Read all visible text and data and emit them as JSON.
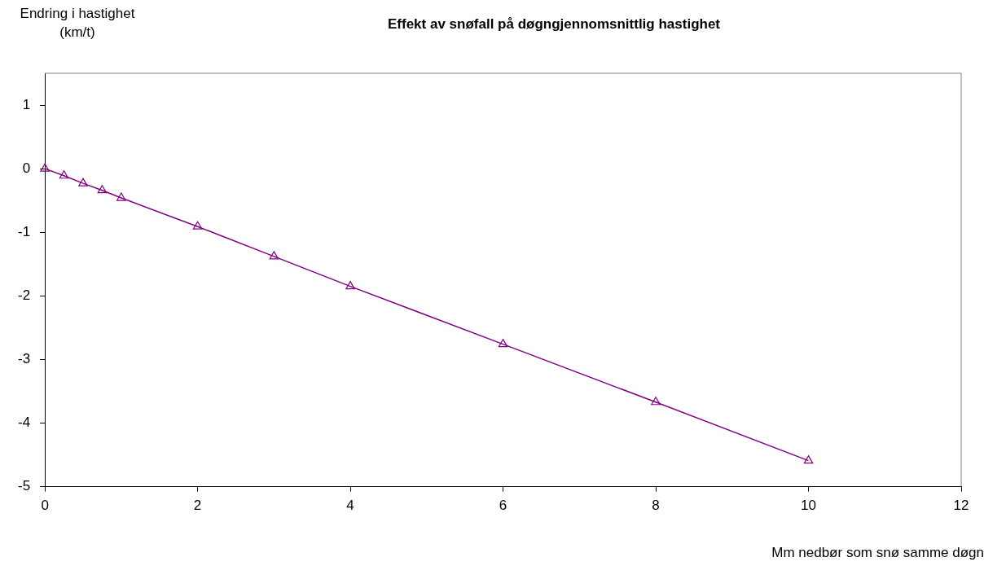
{
  "chart_data": {
    "type": "line",
    "title": "Effekt av snøfall på døgngjennomsnittlig hastighet",
    "ylabel": "Endring i hastighet\n(km/t)",
    "xlabel": "Mm nedbør som snø samme døgn",
    "x": [
      0,
      0.25,
      0.5,
      0.75,
      1,
      2,
      3,
      4,
      6,
      8,
      10
    ],
    "series": [
      {
        "color": "#800080",
        "values": [
          0,
          -0.11,
          -0.23,
          -0.34,
          -0.46,
          -0.91,
          -1.38,
          -1.85,
          -2.76,
          -3.67,
          -4.59
        ]
      }
    ],
    "xlim": [
      0,
      12
    ],
    "xticks": [
      0,
      2,
      4,
      6,
      8,
      10,
      12
    ],
    "ylim": [
      -5,
      1.5
    ],
    "yticks": [
      -5,
      -4,
      -3,
      -2,
      -1,
      0,
      1
    ],
    "grid": false,
    "legend": false,
    "marker": "triangle",
    "line_style": "solid"
  }
}
